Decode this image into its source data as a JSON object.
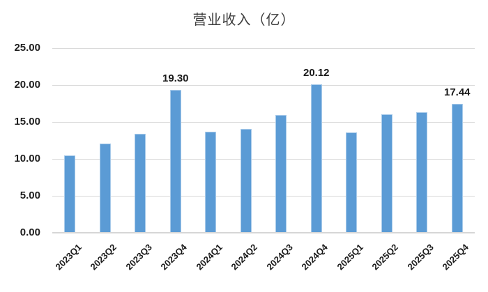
{
  "chart": {
    "title": "营业收入（亿）"
  },
  "chart_data": {
    "type": "bar",
    "title": "营业收入（亿）",
    "categories": [
      "2023Q1",
      "2023Q2",
      "2023Q3",
      "2023Q4",
      "2024Q1",
      "2024Q2",
      "2024Q3",
      "2024Q4",
      "2025Q1",
      "2025Q2",
      "2025Q3",
      "2025Q4"
    ],
    "values": [
      10.45,
      12.08,
      13.35,
      19.3,
      13.68,
      14.06,
      15.92,
      20.12,
      13.55,
      16.05,
      16.32,
      17.44
    ],
    "shown_data_labels": {
      "3": "19.30",
      "7": "20.12",
      "11": "17.44"
    },
    "xlabel": "",
    "ylabel": "",
    "ylim": [
      0,
      25
    ],
    "ytick_labels": [
      "0.00",
      "5.00",
      "10.00",
      "15.00",
      "20.00",
      "25.00"
    ],
    "grid": true,
    "legend_position": "none",
    "bar_color": "#5b9bd5",
    "bar_border_color": "#a9cbea",
    "gridline_color": "#d9d9d9",
    "axis_text_color": "#1f1f1f",
    "title_color": "#3f3f3f"
  }
}
